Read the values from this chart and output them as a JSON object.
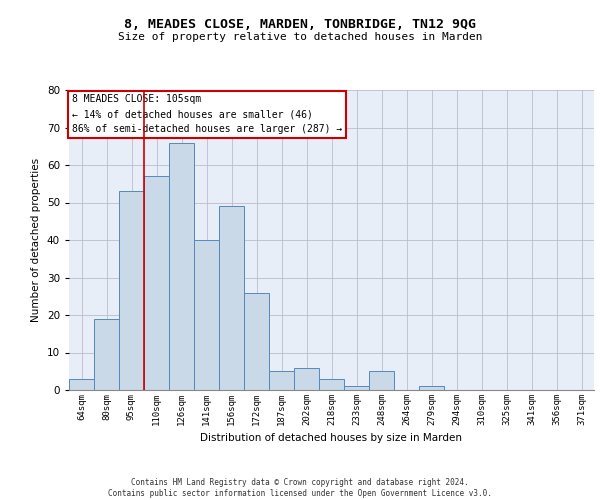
{
  "title1": "8, MEADES CLOSE, MARDEN, TONBRIDGE, TN12 9QG",
  "title2": "Size of property relative to detached houses in Marden",
  "xlabel": "Distribution of detached houses by size in Marden",
  "ylabel": "Number of detached properties",
  "categories": [
    "64sqm",
    "80sqm",
    "95sqm",
    "110sqm",
    "126sqm",
    "141sqm",
    "156sqm",
    "172sqm",
    "187sqm",
    "202sqm",
    "218sqm",
    "233sqm",
    "248sqm",
    "264sqm",
    "279sqm",
    "294sqm",
    "310sqm",
    "325sqm",
    "341sqm",
    "356sqm",
    "371sqm"
  ],
  "values": [
    3,
    19,
    53,
    57,
    66,
    40,
    49,
    26,
    5,
    6,
    3,
    1,
    5,
    0,
    1,
    0,
    0,
    0,
    0,
    0,
    0
  ],
  "bar_color": "#c9d9e8",
  "bar_edge_color": "#5588bb",
  "grid_color": "#bbbbcc",
  "bg_color": "#e8eef8",
  "ylim": [
    0,
    80
  ],
  "yticks": [
    0,
    10,
    20,
    30,
    40,
    50,
    60,
    70,
    80
  ],
  "vline_x": 2.5,
  "annotation_text": "8 MEADES CLOSE: 105sqm\n← 14% of detached houses are smaller (46)\n86% of semi-detached houses are larger (287) →",
  "annotation_box_color": "#ffffff",
  "annotation_box_edge": "#cc0000",
  "vline_color": "#cc0000",
  "footer1": "Contains HM Land Registry data © Crown copyright and database right 2024.",
  "footer2": "Contains public sector information licensed under the Open Government Licence v3.0."
}
